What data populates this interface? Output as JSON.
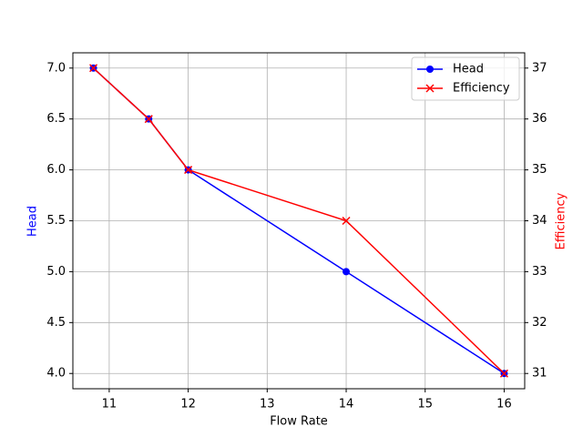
{
  "chart_data": {
    "type": "line",
    "x_label": "Flow Rate",
    "y_label": "Head",
    "y2_label": "Efficiency",
    "x": [
      10.8,
      11.5,
      12,
      14,
      16
    ],
    "series": [
      {
        "name": "Head",
        "color": "#0000ff",
        "marker": "o",
        "values": [
          7,
          6.5,
          6,
          5,
          4
        ]
      },
      {
        "name": "Efficiency",
        "color": "#ff0000",
        "marker": "x",
        "axis": "y2",
        "values": [
          37,
          36,
          35,
          34,
          31
        ]
      }
    ],
    "xlim": [
      10.54,
      16.26
    ],
    "xticks": [
      11,
      12,
      13,
      14,
      15,
      16
    ],
    "ylim": [
      3.85,
      7.15
    ],
    "yticks": [
      {
        "value": 4,
        "label": "4.0"
      },
      4.5,
      {
        "value": 5,
        "label": "5.0"
      },
      5.5,
      {
        "value": 6,
        "label": "6.0"
      },
      6.5,
      {
        "value": 7,
        "label": "7.0"
      }
    ],
    "y2lim": [
      30.7,
      37.3
    ],
    "y2ticks": [
      31,
      32,
      33,
      34,
      35,
      36,
      37
    ],
    "grid": true,
    "legend": "upper right"
  }
}
